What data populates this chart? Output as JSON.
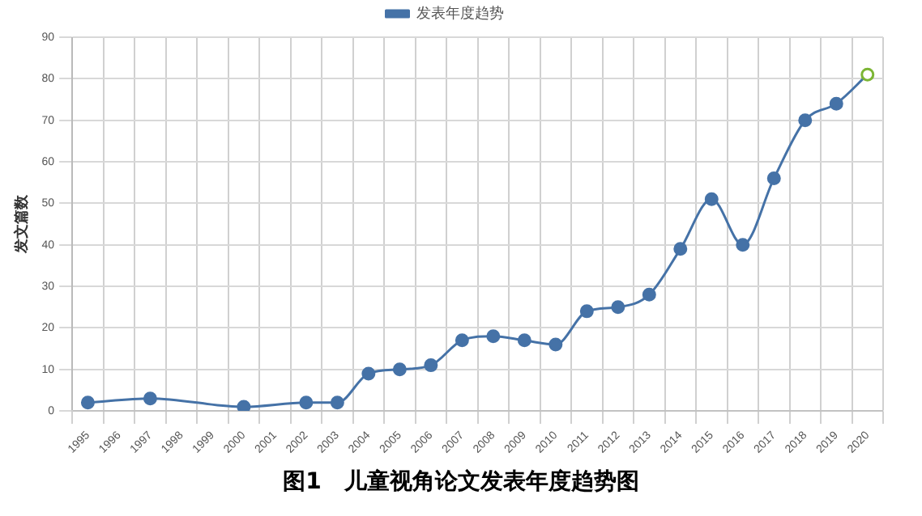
{
  "chart_data": {
    "type": "line",
    "ylabel": "发文篇数",
    "annotations": [
      "图1　儿童视角论文发表年度趋势图"
    ],
    "categories": [
      "1995",
      "1996",
      "1997",
      "1998",
      "1999",
      "2000",
      "2001",
      "2002",
      "2003",
      "2004",
      "2005",
      "2006",
      "2007",
      "2008",
      "2009",
      "2010",
      "2011",
      "2012",
      "2013",
      "2014",
      "2015",
      "2016",
      "2017",
      "2018",
      "2019",
      "2020"
    ],
    "series": [
      {
        "name": "发表年度趋势",
        "color": "#4572a7",
        "colors": [
          "#4572a7",
          "#4572a7",
          "#4572a7",
          "#4572a7",
          "#4572a7",
          "#4572a7",
          "#4572a7",
          "#4572a7",
          "#4572a7",
          "#4572a7",
          "#4572a7",
          "#4572a7",
          "#4572a7",
          "#4572a7",
          "#4572a7",
          "#4572a7",
          "#4572a7",
          "#4572a7",
          "#4572a7",
          "#4572a7",
          "#4572a7",
          "#4572a7",
          "#4572a7",
          "#4572a7",
          "#4572a7",
          "#7cb534"
        ],
        "values": [
          2,
          null,
          3,
          null,
          null,
          1,
          null,
          2,
          2,
          9,
          10,
          11,
          17,
          18,
          17,
          16,
          24,
          25,
          28,
          39,
          51,
          40,
          56,
          70,
          74,
          81
        ]
      }
    ],
    "ylim": [
      0,
      90
    ],
    "yticks": [
      0,
      10,
      20,
      30,
      40,
      50,
      60,
      70,
      80,
      90
    ],
    "grid": true,
    "legend": "top",
    "marker": "circle"
  }
}
